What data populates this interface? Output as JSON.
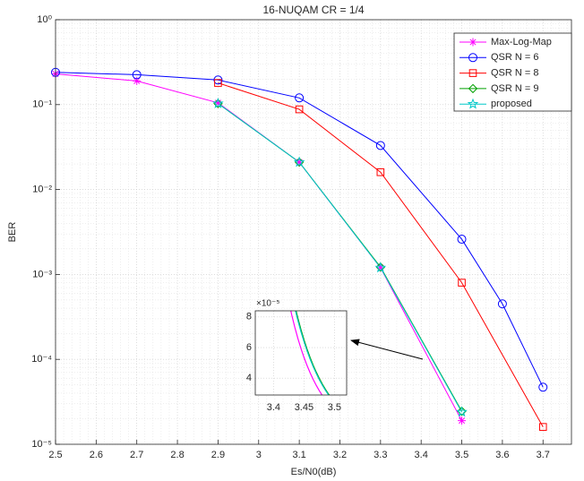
{
  "chart_data": {
    "type": "line",
    "title": "16-NUQAM CR = 1/4",
    "xlabel": "Es/N0(dB)",
    "ylabel": "BER",
    "log_y": true,
    "grid": true,
    "minor_grid": true,
    "legend_position": "top-right",
    "xlim": [
      2.5,
      3.77
    ],
    "xticks": [
      2.5,
      2.6,
      2.7,
      2.8,
      2.9,
      3,
      3.1,
      3.2,
      3.3,
      3.4,
      3.5,
      3.6,
      3.7
    ],
    "ylim": [
      1e-05,
      1
    ],
    "yticks": [
      {
        "value": 1e-05,
        "label": "10⁻⁵"
      },
      {
        "value": 0.0001,
        "label": "10⁻⁴"
      },
      {
        "value": 0.001,
        "label": "10⁻³"
      },
      {
        "value": 0.01,
        "label": "10⁻²"
      },
      {
        "value": 0.1,
        "label": "10⁻¹"
      },
      {
        "value": 1,
        "label": "10⁰"
      }
    ],
    "series": [
      {
        "name": "Max-Log-Map",
        "color": "#ff00ff",
        "marker": "asterisk",
        "x": [
          2.5,
          2.7,
          2.9,
          3.1,
          3.3,
          3.5
        ],
        "values": [
          0.23,
          0.19,
          0.105,
          0.021,
          0.0012,
          1.9e-05
        ]
      },
      {
        "name": "QSR N = 6",
        "color": "#0000ff",
        "marker": "circle",
        "x": [
          2.5,
          2.7,
          2.9,
          3.1,
          3.3,
          3.5,
          3.6,
          3.7
        ],
        "values": [
          0.24,
          0.225,
          0.195,
          0.12,
          0.033,
          0.0026,
          0.00045,
          4.7e-05
        ]
      },
      {
        "name": "QSR N = 8",
        "color": "#ff0000",
        "marker": "square",
        "x": [
          2.9,
          3.1,
          3.3,
          3.5,
          3.7
        ],
        "values": [
          0.18,
          0.088,
          0.016,
          0.0008,
          1.6e-05
        ]
      },
      {
        "name": "QSR N = 9",
        "color": "#00a000",
        "marker": "diamond",
        "x": [
          2.9,
          3.1,
          3.3,
          3.5
        ],
        "values": [
          0.103,
          0.021,
          0.00122,
          2.45e-05
        ]
      },
      {
        "name": "proposed",
        "color": "#00c8c8",
        "marker": "star",
        "x": [
          2.9,
          3.1,
          3.3,
          3.5
        ],
        "values": [
          0.103,
          0.021,
          0.0012,
          2.4e-05
        ]
      }
    ],
    "inset": {
      "multiplier": "×10⁻⁵",
      "xlim": [
        3.37,
        3.52
      ],
      "xticks": [
        3.4,
        3.45,
        3.5
      ],
      "ylim": [
        2.9e-05,
        8.4e-05
      ],
      "yticks": [
        {
          "value": 4e-05,
          "label": "4"
        },
        {
          "value": 6e-05,
          "label": "6"
        },
        {
          "value": 8e-05,
          "label": "8"
        }
      ]
    }
  }
}
